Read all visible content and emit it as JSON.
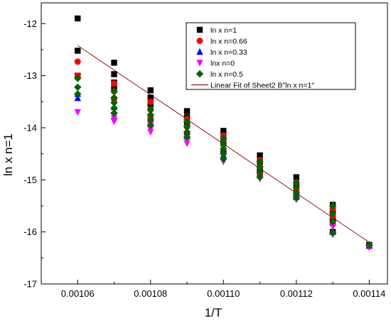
{
  "chart_data": {
    "type": "scatter",
    "title": "",
    "xlabel": "1/T",
    "ylabel": "ln x  n=1",
    "xlim": [
      0.00105,
      0.001145
    ],
    "ylim": [
      -17,
      -11.6
    ],
    "x_ticks": [
      0.00106,
      0.00108,
      0.0011,
      0.00112,
      0.00114
    ],
    "x_tick_labels": [
      "0.00106",
      "0.00108",
      "0.00110",
      "0.00112",
      "0.00114"
    ],
    "y_ticks": [
      -17,
      -16,
      -15,
      -14,
      -13,
      -12
    ],
    "y_tick_labels": [
      "-17",
      "-16",
      "-15",
      "-14",
      "-13",
      "-12"
    ],
    "grid": false,
    "legend_position": "top-right",
    "series": [
      {
        "name": "ln x  n=1",
        "marker": "square",
        "color": "#000000",
        "points": [
          [
            0.00106,
            -11.9
          ],
          [
            0.00106,
            -12.52
          ],
          [
            0.00106,
            -13.0
          ],
          [
            0.00107,
            -12.75
          ],
          [
            0.00107,
            -12.97
          ],
          [
            0.00107,
            -13.13
          ],
          [
            0.00107,
            -13.25
          ],
          [
            0.00108,
            -13.28
          ],
          [
            0.00108,
            -13.42
          ],
          [
            0.00108,
            -13.55
          ],
          [
            0.00109,
            -13.68
          ],
          [
            0.00109,
            -13.8
          ],
          [
            0.00109,
            -13.92
          ],
          [
            0.0011,
            -14.06
          ],
          [
            0.0011,
            -14.18
          ],
          [
            0.0011,
            -14.3
          ],
          [
            0.00111,
            -14.53
          ],
          [
            0.00111,
            -14.65
          ],
          [
            0.00111,
            -14.78
          ],
          [
            0.00112,
            -14.95
          ],
          [
            0.00112,
            -15.1
          ],
          [
            0.00112,
            -15.25
          ],
          [
            0.00113,
            -15.48
          ],
          [
            0.00113,
            -15.6
          ],
          [
            0.00113,
            -15.75
          ],
          [
            0.00113,
            -16.0
          ],
          [
            0.00114,
            -16.25
          ]
        ]
      },
      {
        "name": "ln x n=0.66",
        "marker": "circle",
        "color": "#ff0000",
        "points": [
          [
            0.00106,
            -12.73
          ],
          [
            0.00106,
            -13.0
          ],
          [
            0.00107,
            -13.15
          ],
          [
            0.00107,
            -13.3
          ],
          [
            0.00107,
            -13.45
          ],
          [
            0.00108,
            -13.5
          ],
          [
            0.00108,
            -13.65
          ],
          [
            0.00108,
            -13.8
          ],
          [
            0.00109,
            -13.83
          ],
          [
            0.00109,
            -13.98
          ],
          [
            0.00109,
            -14.12
          ],
          [
            0.0011,
            -14.15
          ],
          [
            0.0011,
            -14.3
          ],
          [
            0.0011,
            -14.45
          ],
          [
            0.00111,
            -14.62
          ],
          [
            0.00111,
            -14.75
          ],
          [
            0.00111,
            -14.9
          ],
          [
            0.00112,
            -15.05
          ],
          [
            0.00112,
            -15.2
          ],
          [
            0.00112,
            -15.33
          ],
          [
            0.00113,
            -15.55
          ],
          [
            0.00113,
            -15.7
          ],
          [
            0.00113,
            -15.85
          ],
          [
            0.00114,
            -16.27
          ]
        ]
      },
      {
        "name": "ln x n=0.33",
        "marker": "triangle-up",
        "color": "#0000ff",
        "points": [
          [
            0.00106,
            -13.35
          ],
          [
            0.00106,
            -13.43
          ],
          [
            0.00107,
            -13.6
          ],
          [
            0.00107,
            -13.68
          ],
          [
            0.00107,
            -13.78
          ],
          [
            0.00108,
            -13.83
          ],
          [
            0.00108,
            -13.93
          ],
          [
            0.00109,
            -14.07
          ],
          [
            0.00109,
            -14.17
          ],
          [
            0.0011,
            -14.42
          ],
          [
            0.0011,
            -14.52
          ],
          [
            0.00111,
            -14.82
          ],
          [
            0.00111,
            -14.9
          ],
          [
            0.00112,
            -15.25
          ],
          [
            0.00112,
            -15.33
          ],
          [
            0.00113,
            -15.82
          ],
          [
            0.00113,
            -15.98
          ],
          [
            0.00114,
            -16.27
          ]
        ]
      },
      {
        "name": "lnx n=0",
        "marker": "triangle-down",
        "color": "#ff00ff",
        "points": [
          [
            0.00106,
            -13.7
          ],
          [
            0.00107,
            -13.75
          ],
          [
            0.00107,
            -13.82
          ],
          [
            0.00107,
            -13.88
          ],
          [
            0.00108,
            -13.95
          ],
          [
            0.00108,
            -14.02
          ],
          [
            0.00108,
            -14.08
          ],
          [
            0.00109,
            -14.22
          ],
          [
            0.00109,
            -14.3
          ],
          [
            0.0011,
            -14.55
          ],
          [
            0.0011,
            -14.65
          ],
          [
            0.00111,
            -14.9
          ],
          [
            0.00111,
            -14.98
          ],
          [
            0.00112,
            -15.3
          ],
          [
            0.00112,
            -15.38
          ],
          [
            0.00113,
            -15.9
          ],
          [
            0.00113,
            -16.05
          ],
          [
            0.00114,
            -16.3
          ]
        ]
      },
      {
        "name": "ln x n=0.5",
        "marker": "diamond",
        "color": "#006400",
        "points": [
          [
            0.00106,
            -13.05
          ],
          [
            0.00106,
            -13.22
          ],
          [
            0.00106,
            -13.35
          ],
          [
            0.00107,
            -13.3
          ],
          [
            0.00107,
            -13.42
          ],
          [
            0.00107,
            -13.52
          ],
          [
            0.00107,
            -13.62
          ],
          [
            0.00107,
            -13.72
          ],
          [
            0.00108,
            -13.65
          ],
          [
            0.00108,
            -13.75
          ],
          [
            0.00108,
            -13.85
          ],
          [
            0.00108,
            -13.95
          ],
          [
            0.00109,
            -13.88
          ],
          [
            0.00109,
            -13.98
          ],
          [
            0.00109,
            -14.08
          ],
          [
            0.00109,
            -14.18
          ],
          [
            0.0011,
            -14.2
          ],
          [
            0.0011,
            -14.3
          ],
          [
            0.0011,
            -14.4
          ],
          [
            0.0011,
            -14.5
          ],
          [
            0.0011,
            -14.6
          ],
          [
            0.00111,
            -14.65
          ],
          [
            0.00111,
            -14.75
          ],
          [
            0.00111,
            -14.85
          ],
          [
            0.00111,
            -14.95
          ],
          [
            0.00112,
            -15.05
          ],
          [
            0.00112,
            -15.15
          ],
          [
            0.00112,
            -15.25
          ],
          [
            0.00112,
            -15.35
          ],
          [
            0.00113,
            -15.5
          ],
          [
            0.00113,
            -15.65
          ],
          [
            0.00113,
            -15.8
          ],
          [
            0.00113,
            -16.02
          ],
          [
            0.00114,
            -16.25
          ]
        ]
      }
    ],
    "fit_line": {
      "name": "Linear Fit of Sheet2 B\"ln x  n=1\"",
      "color": "#8b1a1a",
      "x": [
        0.00106,
        0.00114
      ],
      "y": [
        -12.42,
        -16.2
      ]
    }
  }
}
